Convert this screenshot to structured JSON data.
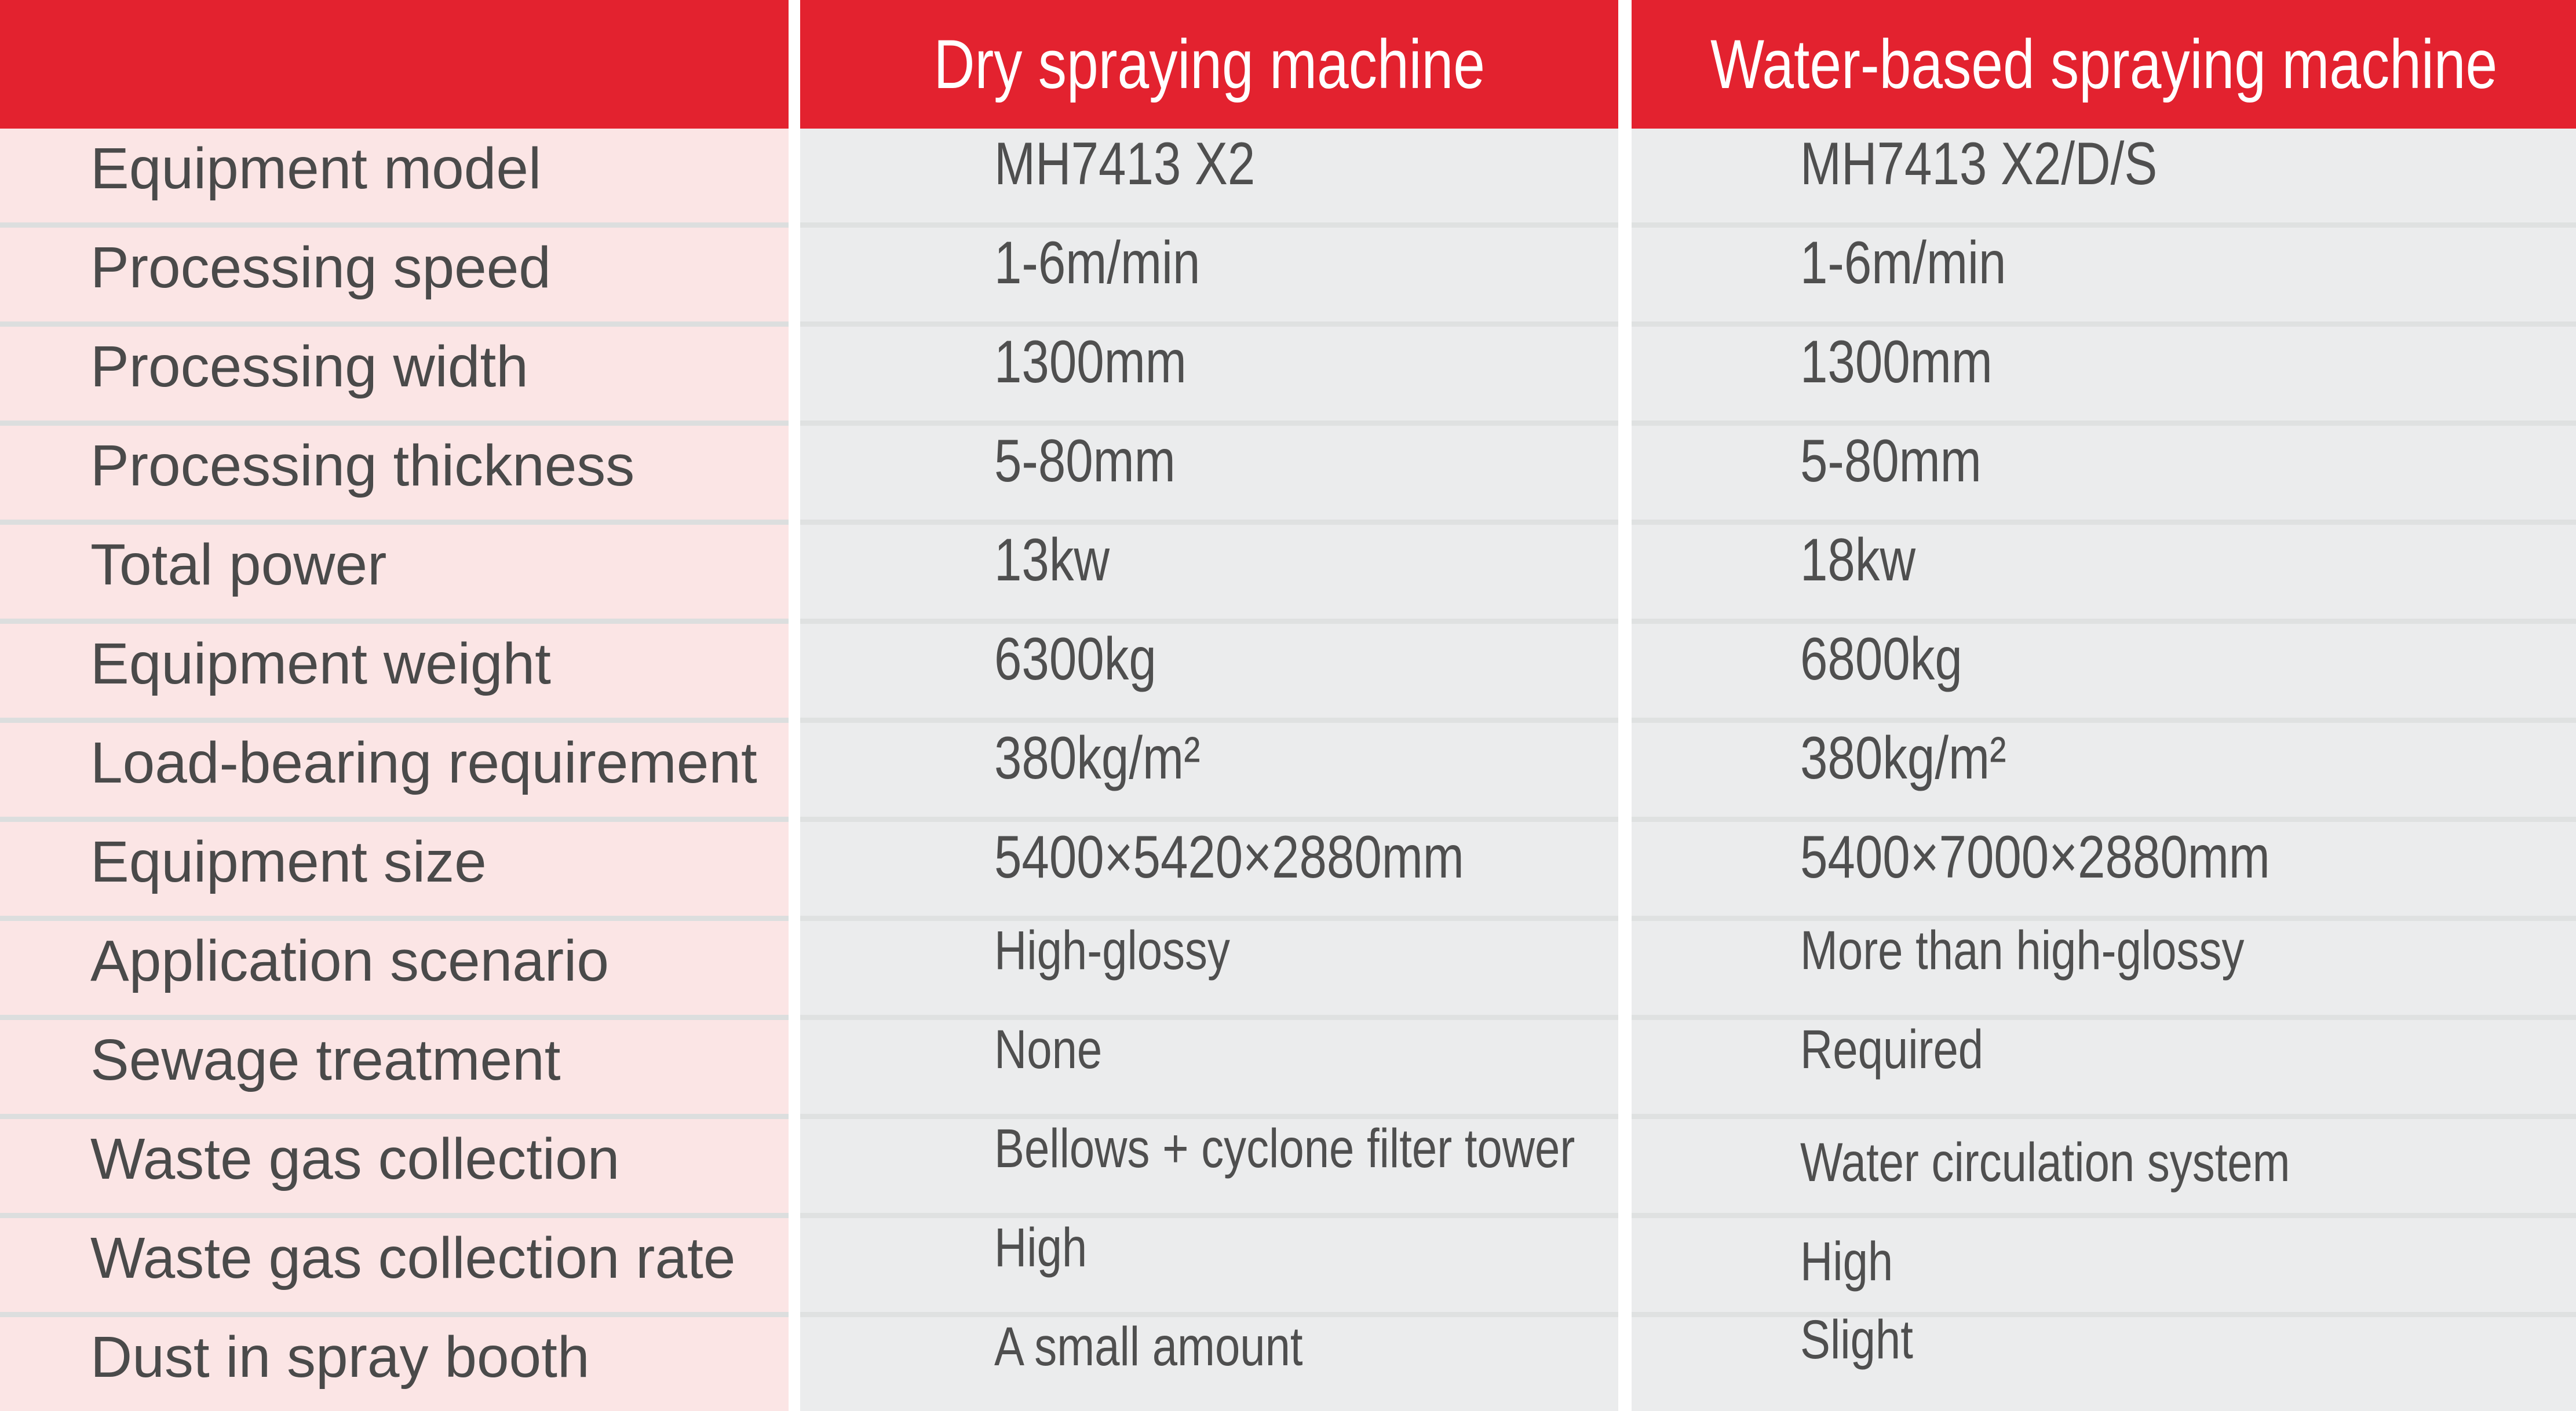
{
  "colors": {
    "header_bg": "#e3222f",
    "header_text": "#ffffff",
    "label_column_bg": "#fbe5e5",
    "value_column_bg": "#ebeced",
    "row_separator": "#dfe1e1",
    "column_gap": "#ffffff",
    "label_text": "#4a4a4a",
    "value_text": "#4f4f4f"
  },
  "table": {
    "headers": {
      "labels": "",
      "dry": "Dry spraying machine",
      "water": "Water-based spraying machine"
    },
    "rows": [
      {
        "label": "Equipment model",
        "dry": "MH7413 X2",
        "water": "MH7413 X2/D/S"
      },
      {
        "label": "Processing speed",
        "dry": "1-6m/min",
        "water": "1-6m/min"
      },
      {
        "label": "Processing width",
        "dry": "1300mm",
        "water": "1300mm"
      },
      {
        "label": "Processing thickness",
        "dry": "5-80mm",
        "water": "5-80mm"
      },
      {
        "label": "Total power",
        "dry": "13kw",
        "water": "18kw"
      },
      {
        "label": "Equipment weight",
        "dry": "6300kg",
        "water": "6800kg"
      },
      {
        "label": "Load-bearing requirement",
        "dry": "380kg/m²",
        "water": "380kg/m²"
      },
      {
        "label": "Equipment size",
        "dry": "5400×5420×2880mm",
        "water": "5400×7000×2880mm"
      },
      {
        "label": "Application scenario",
        "dry": "High-glossy",
        "water": "More than high-glossy"
      },
      {
        "label": "Sewage treatment",
        "dry": "None",
        "water": "Required"
      },
      {
        "label": "Waste gas collection",
        "dry": "Bellows + cyclone filter tower",
        "water": "Water circulation system"
      },
      {
        "label": "Waste gas collection rate",
        "dry": "High",
        "water": "High"
      },
      {
        "label": "Dust in spray booth",
        "dry": "A small amount",
        "water": "Slight"
      }
    ]
  }
}
